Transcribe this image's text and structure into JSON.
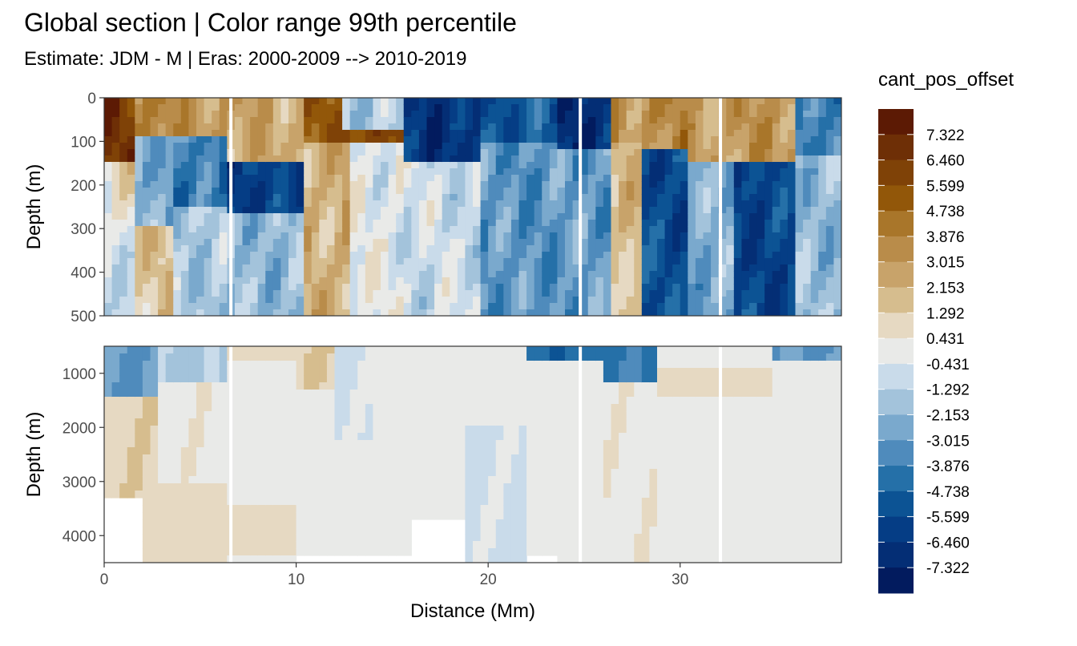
{
  "chart_data": {
    "type": "heatmap",
    "title": "Global section | Color range 99th percentile",
    "subtitle": "Estimate: JDM - M | Eras: 2000-2009 --> 2010-2019",
    "xlabel": "Distance (Mm)",
    "ylabel": "Depth (m)",
    "xlim": [
      0,
      38.4
    ],
    "x_ticks": [
      0,
      10,
      20,
      30
    ],
    "x_tick_labels": [
      "0",
      "10",
      "20",
      "30"
    ],
    "panels": [
      {
        "name": "upper",
        "ylim": [
          0,
          500
        ],
        "y_reversed": true,
        "y_ticks": [
          0,
          100,
          200,
          300,
          400,
          500
        ],
        "y_tick_labels": [
          "0",
          "100",
          "200",
          "300",
          "400",
          "500"
        ]
      },
      {
        "name": "lower",
        "ylim": [
          500,
          4500
        ],
        "y_reversed": true,
        "y_ticks": [
          1000,
          2000,
          3000,
          4000
        ],
        "y_tick_labels": [
          "1000",
          "2000",
          "3000",
          "4000"
        ]
      }
    ],
    "legend": {
      "title": "cant_pos_offset",
      "labels": [
        "7.322",
        "6.460",
        "5.599",
        "4.738",
        "3.876",
        "3.015",
        "2.153",
        "1.292",
        "0.431",
        "-0.431",
        "-1.292",
        "-2.153",
        "-3.015",
        "-3.876",
        "-4.738",
        "-5.599",
        "-6.460",
        "-7.322"
      ],
      "colors": [
        "#5c1a04",
        "#6e2f06",
        "#7f4207",
        "#925709",
        "#a9762a",
        "#b98c4a",
        "#c8a36a",
        "#d6bd8e",
        "#e6d9c2",
        "#e9eae8",
        "#c9dbea",
        "#a3c3db",
        "#7aa9cd",
        "#4f8bbc",
        "#2570a8",
        "#0c5394",
        "#053d85",
        "#042e75",
        "#021b5e"
      ],
      "position": "right"
    },
    "gaps_x": [
      6.6,
      24.8,
      32.1
    ],
    "grid": true
  }
}
